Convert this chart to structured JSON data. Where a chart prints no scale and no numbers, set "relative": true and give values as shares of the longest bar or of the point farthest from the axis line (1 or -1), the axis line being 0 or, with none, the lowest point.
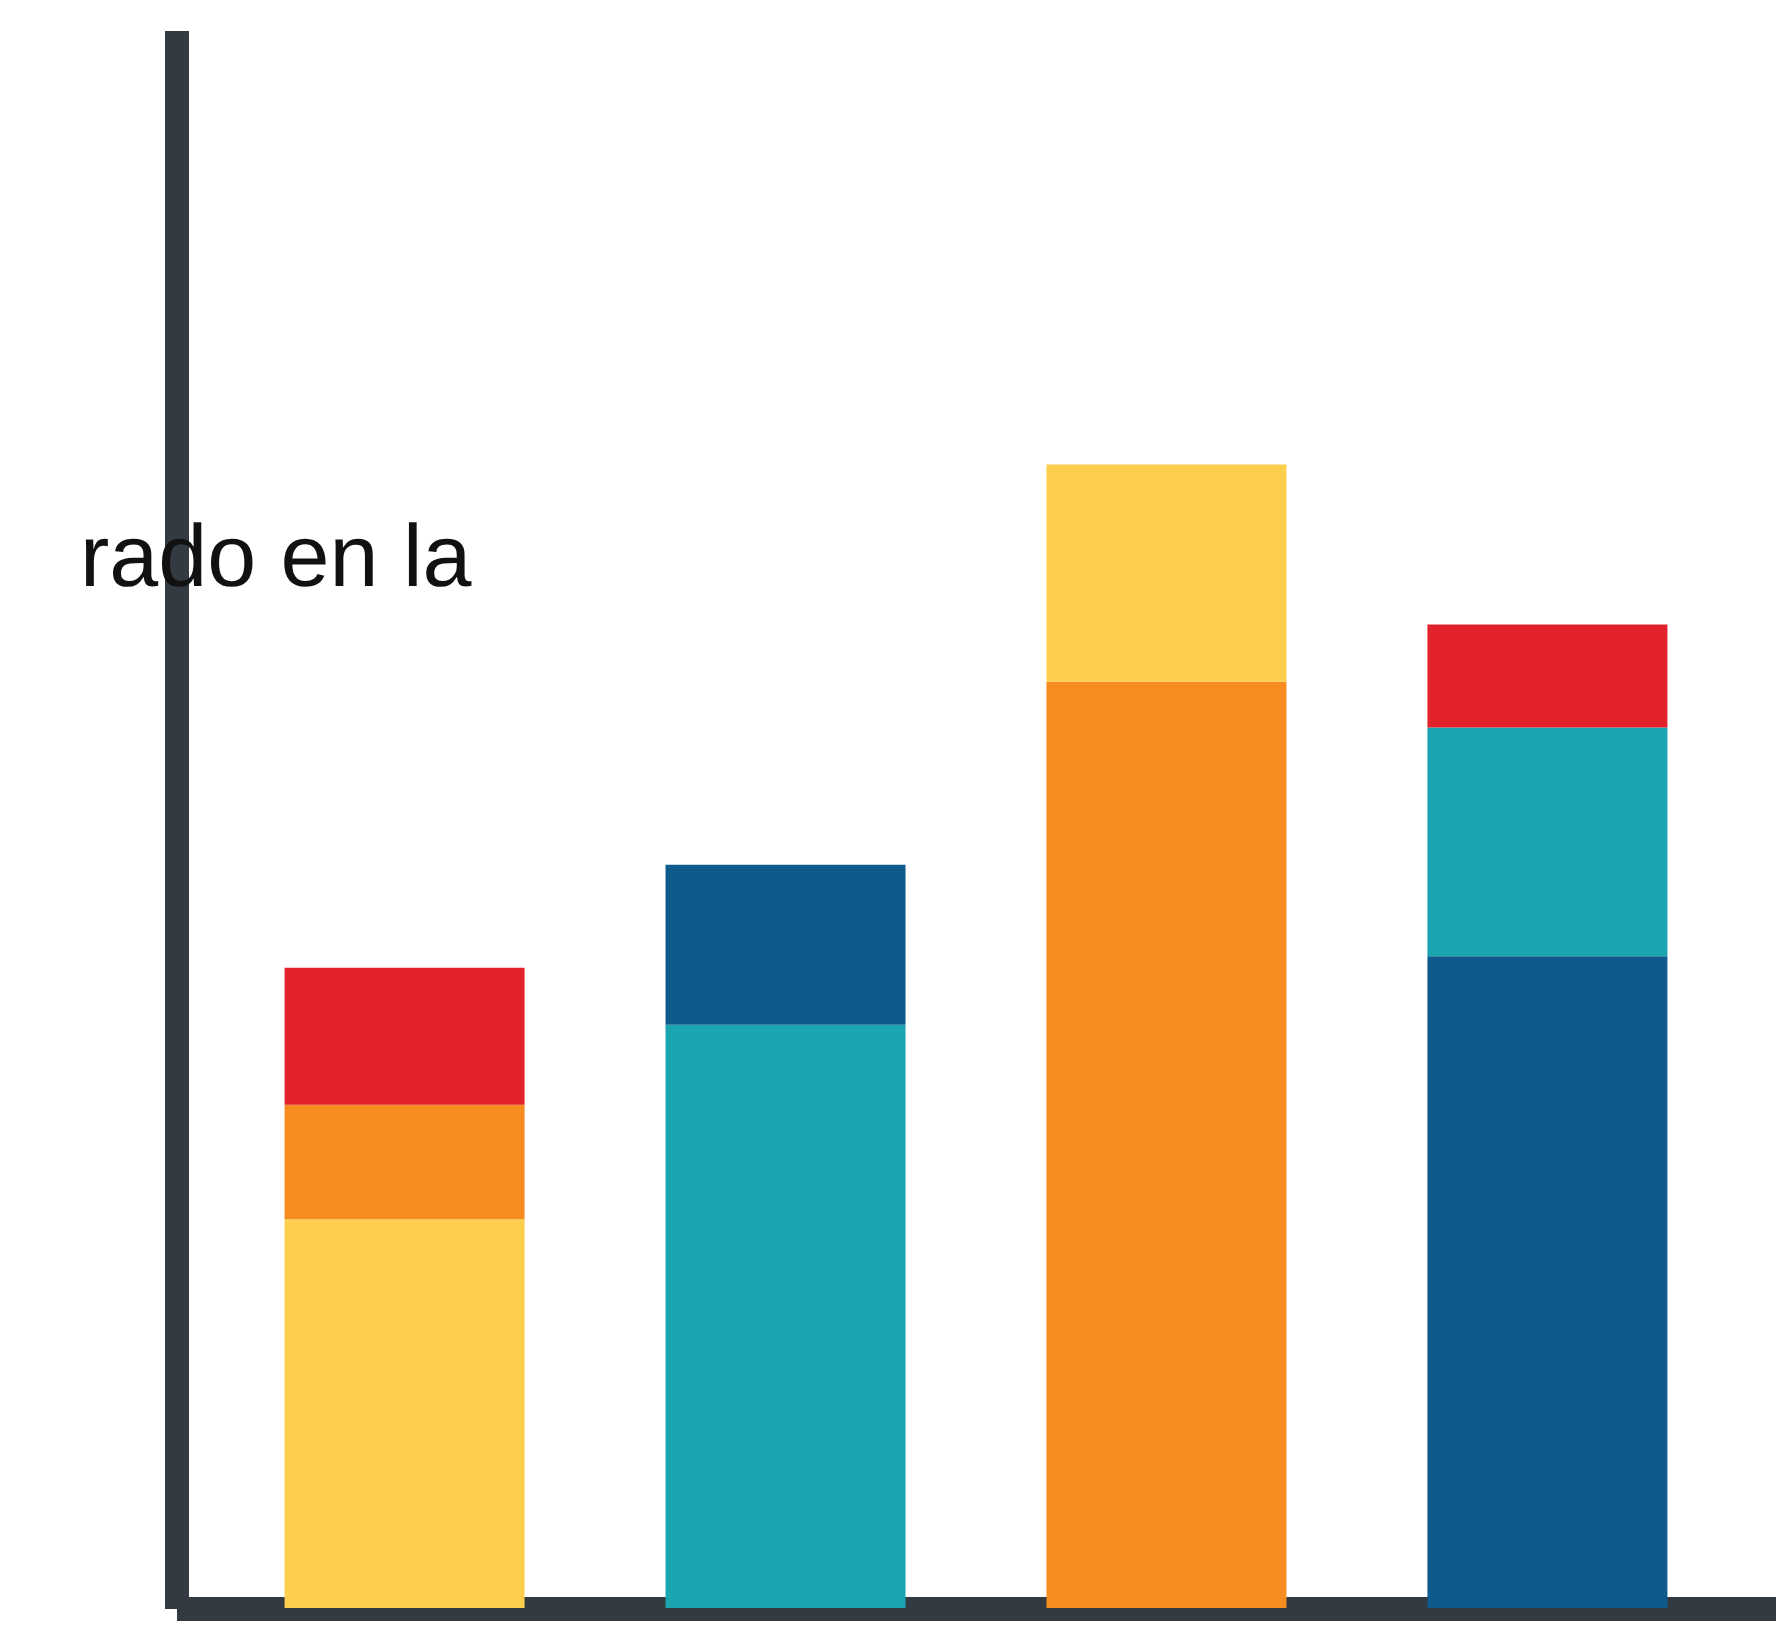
{
  "chart_data": {
    "type": "bar",
    "stacked": true,
    "relative": true,
    "categories": [
      null,
      null,
      null,
      null
    ],
    "series": [
      {
        "values": [
          0.34,
          0.51,
          0.81,
          0.57
        ],
        "colors": [
          "#fbcf4b",
          "#1aa5b0",
          "#f68b1f",
          "#0f5a8c"
        ]
      },
      {
        "values": [
          0.1,
          0.14,
          0.19,
          0.2
        ],
        "colors": [
          "#f68b1f",
          "#0f5a8c",
          "#fbcf4b",
          "#1aa5b0"
        ]
      },
      {
        "values": [
          0.12,
          null,
          null,
          0.09
        ],
        "colors": [
          "#e2222b",
          null,
          null,
          "#e2222b"
        ]
      }
    ],
    "annotations": [
      "rado en la"
    ],
    "grid": false,
    "tick_labels": false
  }
}
